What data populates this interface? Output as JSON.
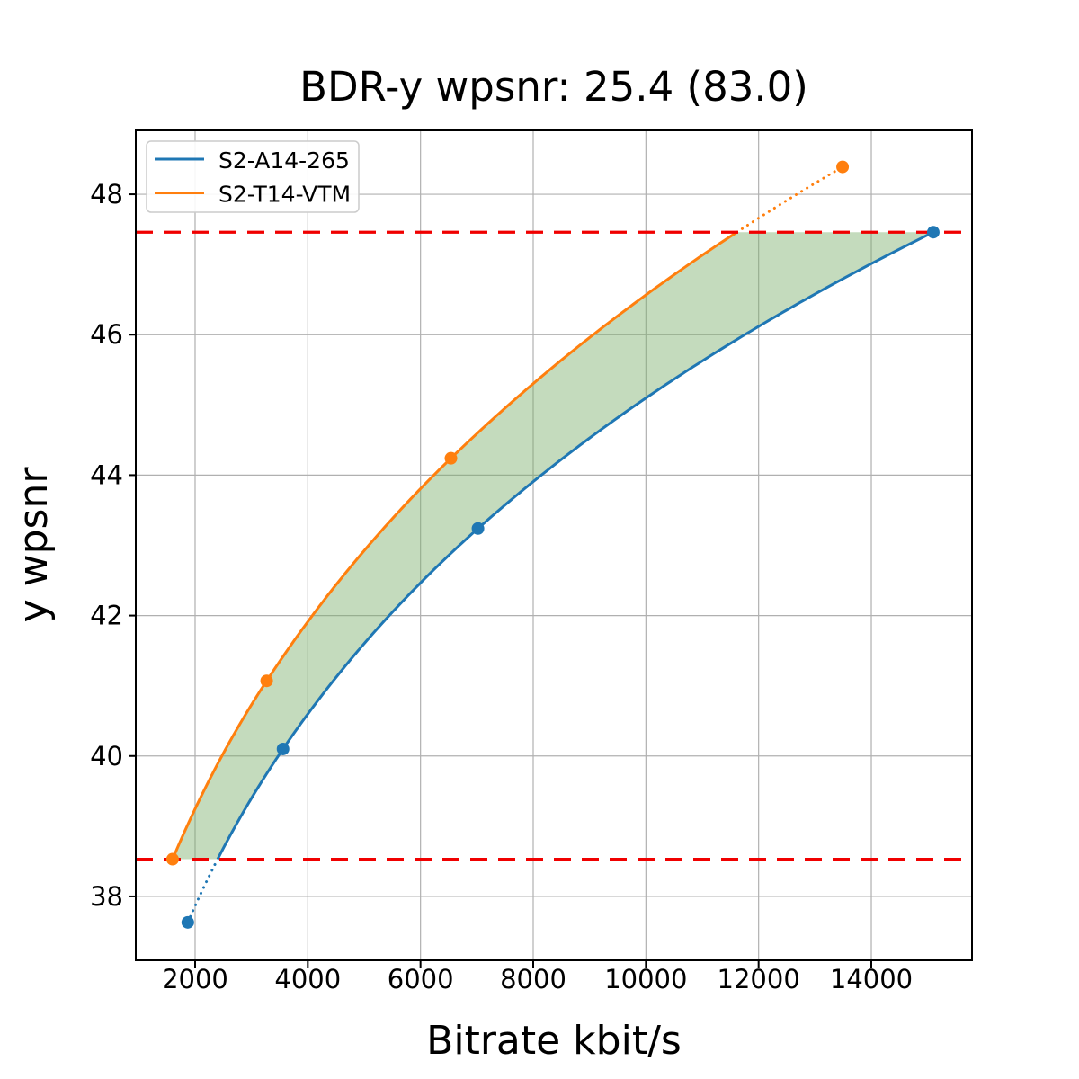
{
  "title": "BDR-y wpsnr: 25.4 (83.0)",
  "chart_data": {
    "type": "line",
    "title": "BDR-y wpsnr: 25.4 (83.0)",
    "xlabel": "Bitrate kbit/s",
    "ylabel": "y wpsnr",
    "xlim": [
      947,
      15787
    ],
    "ylim": [
      37.09,
      48.91
    ],
    "x_ticks": [
      2000,
      4000,
      6000,
      8000,
      10000,
      12000,
      14000
    ],
    "y_ticks": [
      38,
      40,
      42,
      44,
      46,
      48
    ],
    "grid": true,
    "grid_color": "#b0b0b0",
    "legend_position": "upper-left",
    "series": [
      {
        "name": "S2-A14-265",
        "color": "#1f77b4",
        "interpolation": "pchip-log-x",
        "points": [
          [
            1870,
            37.63
          ],
          [
            3560,
            40.1
          ],
          [
            7020,
            43.24
          ],
          [
            15100,
            47.46
          ]
        ]
      },
      {
        "name": "S2-T14-VTM",
        "color": "#ff7f0e",
        "interpolation": "pchip-log-x",
        "points": [
          [
            1600,
            38.53
          ],
          [
            3270,
            41.07
          ],
          [
            6540,
            44.24
          ],
          [
            13490,
            48.39
          ]
        ]
      }
    ],
    "bd_bounds": {
      "lower": 38.53,
      "upper": 47.46,
      "line_color": "#f00000",
      "line_style": "dashed"
    },
    "shade": {
      "color": "#7cb06c",
      "alpha": 0.45
    }
  }
}
